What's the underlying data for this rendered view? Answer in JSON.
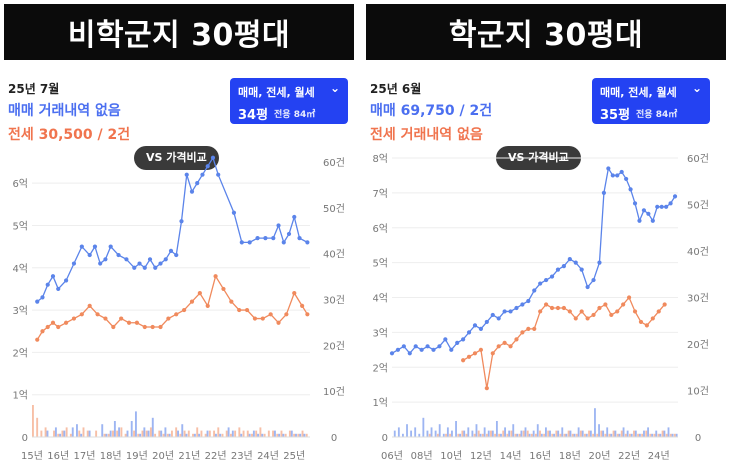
{
  "panels": [
    {
      "title": "비학군지 30평대",
      "period": "25년 7월",
      "trade_summary": "매매 거래내역 없음",
      "rent_summary": "전세 30,500 / 2건",
      "filter": {
        "types": "매매, 전세, 월세",
        "size": "34평",
        "area": "전용 84㎡"
      },
      "compare_label": "VS 가격비교"
    },
    {
      "title": "학군지 30평대",
      "period": "25년 6월",
      "trade_summary": "매매 69,750 / 2건",
      "rent_summary": "전세 거래내역 없음",
      "filter": {
        "types": "매매, 전세, 월세",
        "size": "35평",
        "area": "전용 84㎡"
      },
      "compare_label": "VS 가격비교"
    }
  ],
  "colors": {
    "trade": "#5b84ea",
    "rent": "#f08a5d",
    "title_bg": "#0b0b0b",
    "filter_bg": "#2442f2"
  },
  "chart_data": [
    {
      "type": "line",
      "x_unit": "year",
      "xlim": [
        15,
        25.6
      ],
      "x_ticks": [
        "15년",
        "16년",
        "17년",
        "18년",
        "19년",
        "20년",
        "21년",
        "22년",
        "23년",
        "24년",
        "25년"
      ],
      "y_ticks_left": [
        "0",
        "1억",
        "2억",
        "3억",
        "4억",
        "5억",
        "6억"
      ],
      "y_ticks_right": [
        "0",
        "10건",
        "20건",
        "30건",
        "40건",
        "50건",
        "60건"
      ],
      "ylim_left": [
        0,
        6.5
      ],
      "ylim_right": [
        0,
        60
      ],
      "series": [
        {
          "key": "trade",
          "x": [
            15.2,
            15.4,
            15.6,
            15.8,
            16.0,
            16.3,
            16.6,
            16.9,
            17.2,
            17.4,
            17.6,
            17.8,
            18.0,
            18.3,
            18.6,
            18.9,
            19.1,
            19.3,
            19.5,
            19.7,
            19.9,
            20.1,
            20.3,
            20.5,
            20.7,
            20.9,
            21.1,
            21.3,
            21.5,
            21.7,
            21.9,
            22.1,
            22.7,
            23.0,
            23.3,
            23.6,
            23.9,
            24.2,
            24.4,
            24.6,
            24.8,
            25.0,
            25.2,
            25.5
          ],
          "values": [
            3.2,
            3.3,
            3.6,
            3.8,
            3.5,
            3.7,
            4.1,
            4.5,
            4.3,
            4.5,
            4.1,
            4.2,
            4.5,
            4.3,
            4.2,
            4.0,
            4.1,
            4.0,
            4.2,
            4.0,
            4.1,
            4.2,
            4.4,
            4.3,
            5.1,
            6.2,
            5.8,
            6.0,
            6.2,
            6.4,
            6.6,
            6.2,
            5.3,
            4.6,
            4.6,
            4.7,
            4.7,
            4.7,
            5.0,
            4.6,
            4.8,
            5.2,
            4.7,
            4.6
          ]
        },
        {
          "key": "rent",
          "x": [
            15.2,
            15.4,
            15.6,
            15.8,
            16.0,
            16.3,
            16.6,
            16.9,
            17.2,
            17.5,
            17.8,
            18.1,
            18.4,
            18.7,
            19.0,
            19.3,
            19.6,
            19.9,
            20.2,
            20.5,
            20.8,
            21.1,
            21.4,
            21.7,
            22.0,
            22.3,
            22.6,
            22.9,
            23.2,
            23.5,
            23.8,
            24.1,
            24.4,
            24.7,
            25.0,
            25.3,
            25.5
          ],
          "values": [
            2.3,
            2.5,
            2.6,
            2.7,
            2.6,
            2.7,
            2.8,
            2.9,
            3.1,
            2.9,
            2.8,
            2.6,
            2.8,
            2.7,
            2.7,
            2.6,
            2.6,
            2.6,
            2.8,
            2.9,
            3.0,
            3.2,
            3.4,
            3.1,
            3.8,
            3.5,
            3.2,
            3.0,
            3.0,
            2.8,
            2.8,
            2.9,
            2.7,
            2.9,
            3.4,
            3.1,
            2.9
          ]
        }
      ],
      "volume": {
        "trade": [
          0,
          0,
          0,
          2,
          0,
          3,
          1,
          2,
          0,
          3,
          4,
          1,
          0,
          2,
          0,
          0,
          4,
          1,
          2,
          5,
          3,
          0,
          2,
          5,
          8,
          1,
          3,
          2,
          6,
          0,
          2,
          3,
          1,
          0,
          2,
          4,
          1,
          0,
          1,
          1,
          0,
          2,
          0,
          1,
          1,
          0,
          3,
          2,
          0,
          1,
          0,
          1,
          2,
          1,
          1,
          0,
          0,
          2,
          1,
          1,
          0,
          2,
          1,
          1,
          1,
          0
        ],
        "rent": [
          10,
          6,
          2,
          3,
          0,
          2,
          1,
          2,
          3,
          1,
          0,
          2,
          3,
          2,
          0,
          2,
          0,
          1,
          1,
          2,
          2,
          3,
          1,
          0,
          2,
          1,
          2,
          2,
          3,
          1,
          2,
          1,
          1,
          2,
          3,
          1,
          2,
          2,
          1,
          3,
          2,
          1,
          2,
          2,
          3,
          1,
          2,
          1,
          2,
          3,
          2,
          2,
          1,
          2,
          3,
          1,
          2,
          2,
          1,
          2,
          1,
          2,
          1,
          1,
          2,
          1
        ]
      }
    },
    {
      "type": "line",
      "x_unit": "year",
      "xlim": [
        6,
        25.3
      ],
      "x_ticks": [
        "06년",
        "08년",
        "10년",
        "12년",
        "14년",
        "16년",
        "18년",
        "20년",
        "22년",
        "24년"
      ],
      "y_ticks_left": [
        "0",
        "1억",
        "2억",
        "3억",
        "4억",
        "5억",
        "6억",
        "7억",
        "8억"
      ],
      "y_ticks_right": [
        "0",
        "10건",
        "20건",
        "30건",
        "40건",
        "50건",
        "60건"
      ],
      "ylim_left": [
        0,
        8
      ],
      "ylim_right": [
        0,
        60
      ],
      "series": [
        {
          "key": "trade",
          "x": [
            6.0,
            6.4,
            6.8,
            7.2,
            7.6,
            8.0,
            8.4,
            8.8,
            9.2,
            9.6,
            10.0,
            10.4,
            10.8,
            11.2,
            11.6,
            12.0,
            12.4,
            12.8,
            13.2,
            13.6,
            14.0,
            14.4,
            14.8,
            15.2,
            15.6,
            16.0,
            16.4,
            16.8,
            17.2,
            17.6,
            18.0,
            18.4,
            18.8,
            19.2,
            19.6,
            20.0,
            20.3,
            20.6,
            20.9,
            21.2,
            21.5,
            21.8,
            22.1,
            22.4,
            22.7,
            23.0,
            23.3,
            23.6,
            23.9,
            24.2,
            24.5,
            24.8,
            25.1
          ],
          "values": [
            2.4,
            2.5,
            2.6,
            2.4,
            2.6,
            2.5,
            2.6,
            2.5,
            2.6,
            2.8,
            2.5,
            2.7,
            2.8,
            3.0,
            3.2,
            3.1,
            3.3,
            3.5,
            3.4,
            3.6,
            3.6,
            3.7,
            3.8,
            3.9,
            4.2,
            4.4,
            4.5,
            4.6,
            4.8,
            4.9,
            5.1,
            5.0,
            4.8,
            4.3,
            4.5,
            5.0,
            7.0,
            7.7,
            7.5,
            7.5,
            7.6,
            7.4,
            7.1,
            6.7,
            6.2,
            6.5,
            6.4,
            6.2,
            6.6,
            6.6,
            6.6,
            6.7,
            6.9
          ]
        },
        {
          "key": "rent",
          "x": [
            10.8,
            11.2,
            11.6,
            12.0,
            12.4,
            12.8,
            13.2,
            13.6,
            14.0,
            14.4,
            14.8,
            15.2,
            15.6,
            16.0,
            16.4,
            16.8,
            17.2,
            17.6,
            18.0,
            18.4,
            18.8,
            19.2,
            19.6,
            20.0,
            20.4,
            20.8,
            21.2,
            21.6,
            22.0,
            22.4,
            22.8,
            23.2,
            23.6,
            24.0,
            24.4
          ],
          "values": [
            2.2,
            2.3,
            2.4,
            2.5,
            1.4,
            2.4,
            2.6,
            2.7,
            2.6,
            2.8,
            3.0,
            3.1,
            3.1,
            3.6,
            3.8,
            3.7,
            3.7,
            3.7,
            3.6,
            3.4,
            3.6,
            3.4,
            3.5,
            3.7,
            3.8,
            3.5,
            3.6,
            3.8,
            4.0,
            3.6,
            3.3,
            3.2,
            3.4,
            3.6,
            3.8
          ]
        }
      ],
      "volume": {
        "trade": [
          2,
          3,
          1,
          4,
          2,
          3,
          1,
          6,
          2,
          3,
          2,
          4,
          1,
          3,
          2,
          5,
          1,
          2,
          3,
          2,
          4,
          1,
          3,
          2,
          2,
          5,
          1,
          3,
          2,
          4,
          1,
          2,
          3,
          1,
          2,
          4,
          1,
          3,
          2,
          1,
          2,
          3,
          1,
          2,
          1,
          3,
          2,
          1,
          2,
          9,
          4,
          2,
          3,
          1,
          2,
          1,
          3,
          2,
          1,
          2,
          1,
          2,
          3,
          1,
          2,
          1,
          2,
          3,
          1,
          1
        ],
        "rent": [
          0,
          0,
          0,
          0,
          0,
          0,
          0,
          0,
          0,
          1,
          0,
          1,
          0,
          1,
          1,
          0,
          1,
          2,
          1,
          0,
          1,
          2,
          1,
          1,
          2,
          1,
          1,
          2,
          1,
          2,
          1,
          1,
          2,
          2,
          1,
          1,
          2,
          1,
          2,
          1,
          2,
          1,
          1,
          2,
          1,
          1,
          2,
          1,
          2,
          1,
          1,
          2,
          1,
          1,
          2,
          1,
          2,
          1,
          1,
          2,
          1,
          1,
          2,
          1,
          1,
          1,
          2,
          1,
          1,
          1
        ]
      }
    }
  ]
}
